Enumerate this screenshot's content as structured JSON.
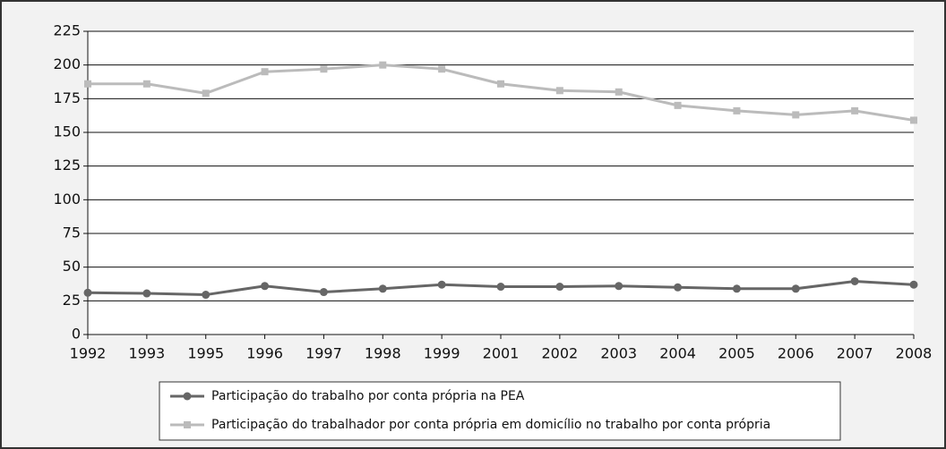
{
  "chart_data": {
    "type": "line",
    "categories": [
      "1992",
      "1993",
      "1995",
      "1996",
      "1997",
      "1998",
      "1999",
      "2001",
      "2002",
      "2003",
      "2004",
      "2005",
      "2006",
      "2007",
      "2008"
    ],
    "series": [
      {
        "name": "Participação do trabalho por conta própria na PEA",
        "color": "#666666",
        "marker": "circle",
        "values": [
          31,
          30.5,
          29.5,
          36,
          31.5,
          34,
          37,
          35.5,
          35.5,
          36,
          35,
          34,
          34,
          39.5,
          37
        ]
      },
      {
        "name": "Participação do trabalhador por conta própria em domicílio no trabalho por conta própria",
        "color": "#bbbbbb",
        "marker": "square",
        "values": [
          186,
          186,
          179,
          195,
          197,
          200,
          197,
          186,
          181,
          180,
          170,
          166,
          163,
          166,
          159
        ]
      }
    ],
    "ylim": [
      0,
      225
    ],
    "yticks": [
      0,
      25,
      50,
      75,
      100,
      125,
      150,
      175,
      200,
      225
    ],
    "grid": true,
    "legend": "bottom"
  }
}
